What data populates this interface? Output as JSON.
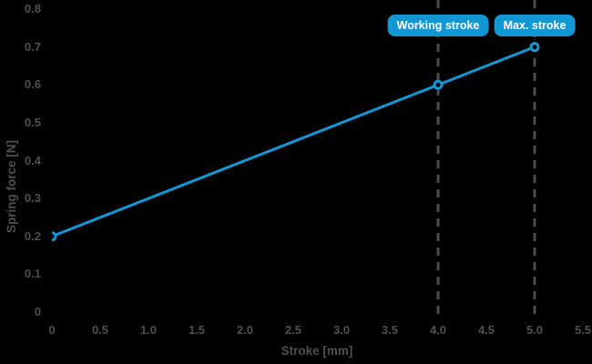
{
  "window": {
    "background": "#000000"
  },
  "colors": {
    "accent_blue": "#1296d4",
    "axis_text_gray": "#4f4f4f",
    "dashed_line_gray": "#4d4d4d",
    "annotation_text": "#ffffff",
    "marker_hole": "#000000"
  },
  "chart_data": {
    "type": "line",
    "title": "",
    "xlabel": "Stroke [mm]",
    "ylabel": "Spring force [N]",
    "xlim": [
      0,
      5.5
    ],
    "ylim": [
      0,
      0.8
    ],
    "xticks": [
      0,
      0.5,
      1,
      1.5,
      2,
      2.5,
      3,
      3.5,
      4,
      4.5,
      5,
      5.5
    ],
    "xtick_labels": [
      "0",
      "0.5",
      "1.0",
      "1.5",
      "2.0",
      "2.5",
      "3.0",
      "3.5",
      "4.0",
      "4.5",
      "5.0",
      "5.5"
    ],
    "yticks": [
      0,
      0.1,
      0.2,
      0.3,
      0.4,
      0.5,
      0.6,
      0.7,
      0.8
    ],
    "ytick_labels": [
      "0",
      "0.1",
      "0.2",
      "0.3",
      "0.4",
      "0.5",
      "0.6",
      "0.7",
      "0.8"
    ],
    "grid": false,
    "legend_position": "none",
    "series": [
      {
        "name": "spring-force-line",
        "x": [
          0,
          4,
          5
        ],
        "y": [
          0.2,
          0.6,
          0.7
        ],
        "color": "#1296d4",
        "line_width": 3,
        "marker": "open-circle"
      }
    ],
    "annotations": [
      {
        "label": "Working stroke",
        "x": 4,
        "style": "blue-pill"
      },
      {
        "label": "Max. stroke",
        "x": 5,
        "style": "blue-pill"
      }
    ]
  }
}
